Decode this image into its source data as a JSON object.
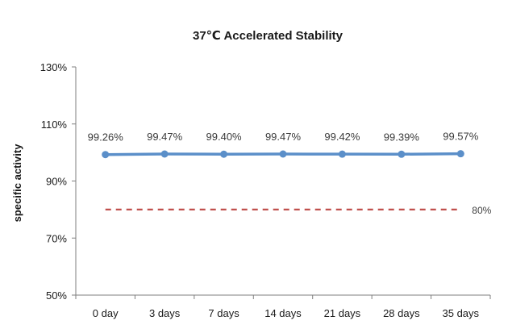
{
  "chart_data": {
    "type": "line",
    "title": "37℃ Accelerated Stability",
    "xlabel": "",
    "ylabel": "specific activity",
    "categories": [
      "0 day",
      "3 days",
      "7 days",
      "14 days",
      "21 days",
      "28 days",
      "35 days"
    ],
    "series": [
      {
        "values": [
          99.26,
          99.47,
          99.4,
          99.47,
          99.42,
          99.39,
          99.57
        ],
        "labels": [
          "99.26%",
          "99.47%",
          "99.40%",
          "99.47%",
          "99.42%",
          "99.39%",
          "99.57%"
        ],
        "color": "#5b8fc9"
      }
    ],
    "reference_line": {
      "value": 80,
      "label": "80%",
      "color": "#c0504d",
      "style": "dashed"
    },
    "ylim": [
      50,
      130
    ],
    "yticks": [
      50,
      70,
      90,
      110,
      130
    ],
    "ytick_labels": [
      "50%",
      "70%",
      "90%",
      "110%",
      "130%"
    ],
    "grid": false,
    "legend": "none"
  }
}
